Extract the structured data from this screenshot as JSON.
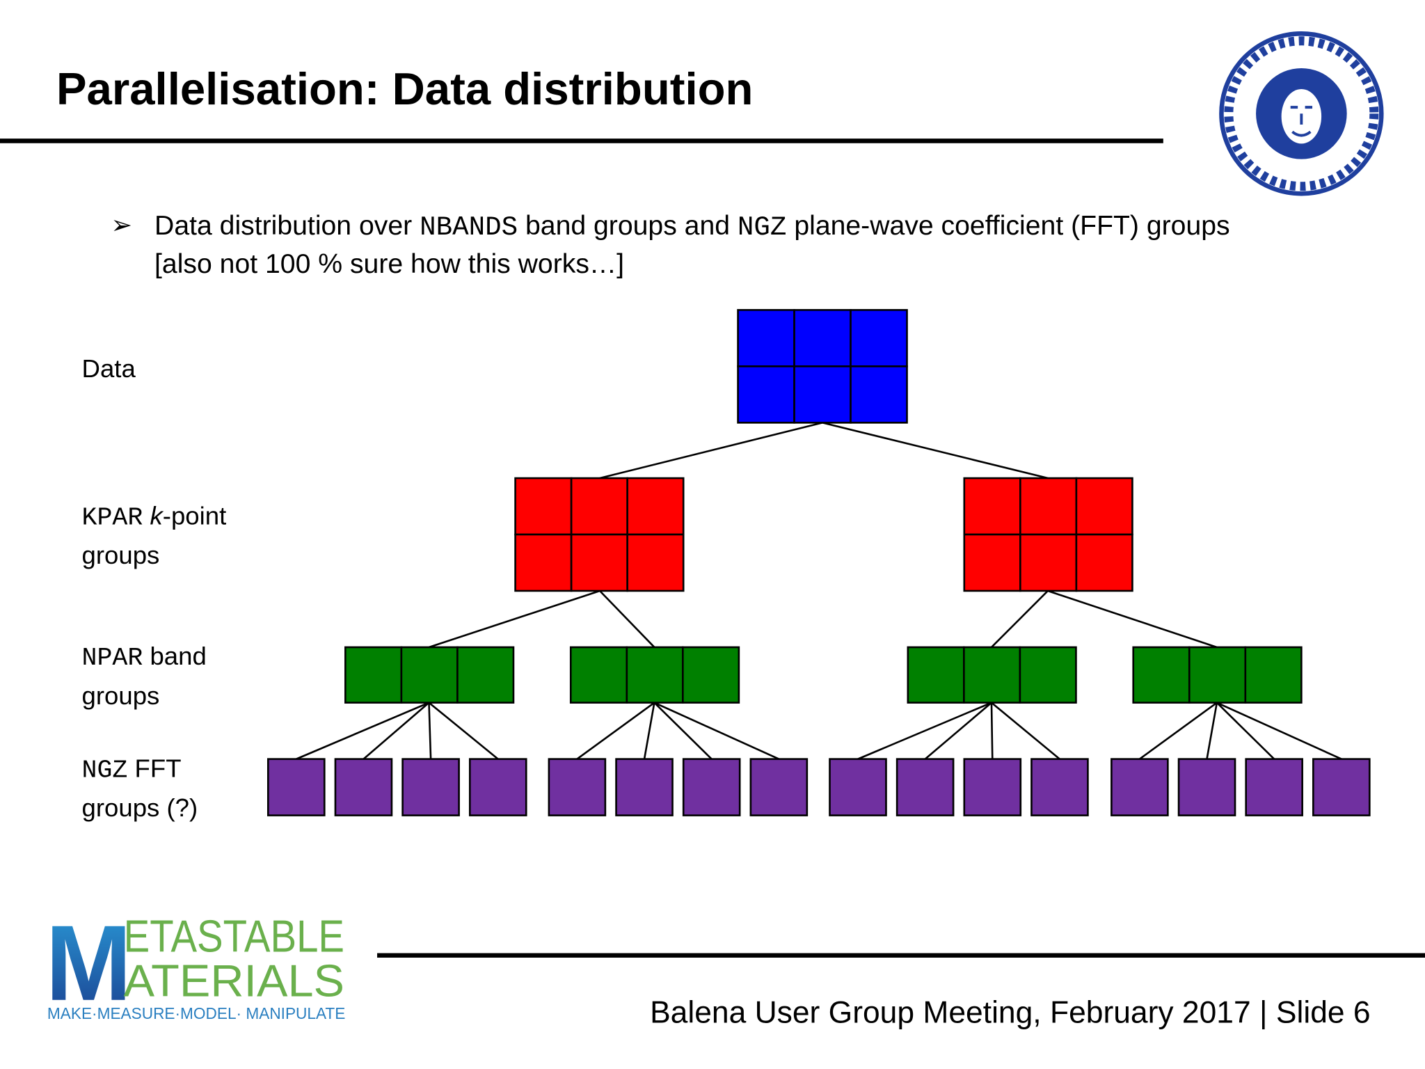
{
  "header": {
    "title": "Parallelisation: Data distribution"
  },
  "bullet": {
    "parts": [
      "Data distribution over ",
      "NBANDS",
      " band groups and ",
      "NGZ",
      " plane-wave coefficient (FFT) groups"
    ],
    "line2": "[also not 100 % sure how this works…]"
  },
  "levels": [
    {
      "line1": [
        "Data"
      ]
    },
    {
      "line1": [
        "KPAR",
        " ",
        "k",
        "-point"
      ],
      "line2": "groups"
    },
    {
      "line1": [
        "NPAR",
        " band"
      ],
      "line2": "groups"
    },
    {
      "line1": [
        "NGZ",
        " FFT"
      ],
      "line2": "groups (?)"
    }
  ],
  "logo": {
    "initial": "M",
    "line1": "ETASTABLE",
    "line2": "ATERIALS",
    "tagline": "MAKE·MEASURE·MODEL· MANIPULATE"
  },
  "footer": {
    "text": "Balena User Group Meeting, February 2017 | Slide 6"
  }
}
